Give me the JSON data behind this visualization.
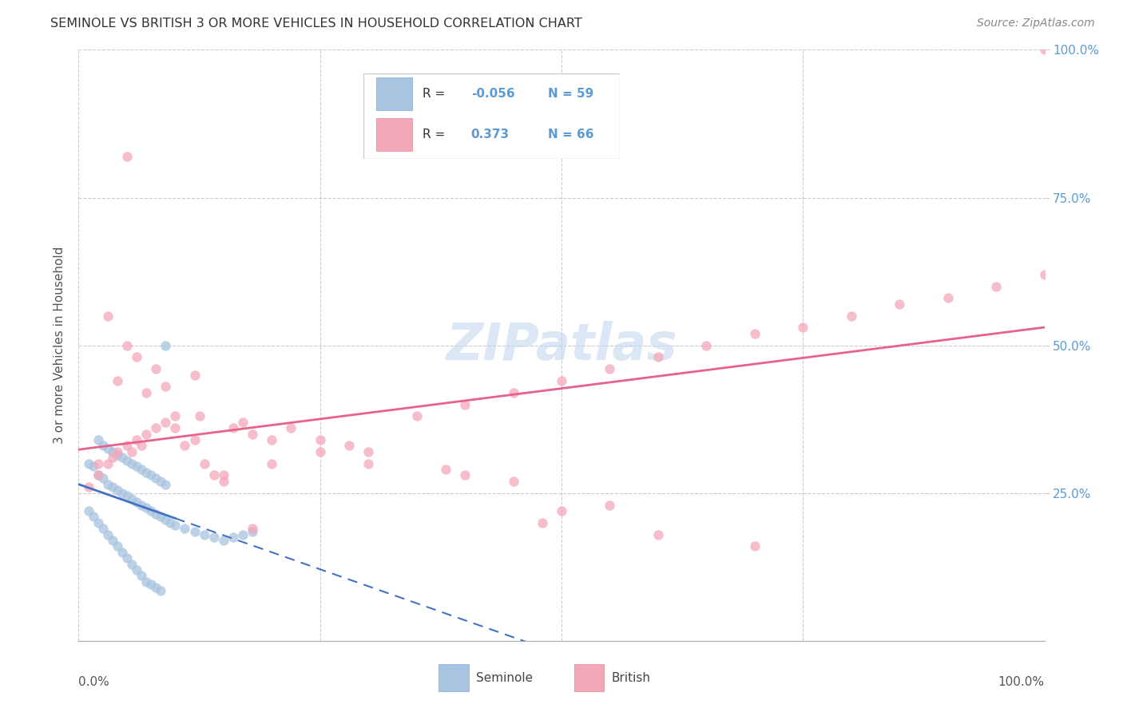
{
  "title": "SEMINOLE VS BRITISH 3 OR MORE VEHICLES IN HOUSEHOLD CORRELATION CHART",
  "source": "Source: ZipAtlas.com",
  "ylabel": "3 or more Vehicles in Household",
  "R_seminole": -0.056,
  "N_seminole": 59,
  "R_british": 0.373,
  "N_british": 66,
  "seminole_color": "#a8c4e0",
  "british_color": "#f4a7b9",
  "seminole_line_color": "#4472c4",
  "british_line_color": "#e8638c",
  "watermark_color": "#c5d8ef",
  "grid_color": "#cccccc",
  "seminole_x": [
    1.0,
    1.5,
    2.0,
    2.5,
    3.0,
    3.5,
    4.0,
    4.5,
    5.0,
    5.5,
    6.0,
    6.5,
    7.0,
    7.5,
    8.0,
    8.5,
    9.0,
    9.5,
    10.0,
    11.0,
    12.0,
    13.0,
    14.0,
    15.0,
    16.0,
    17.0,
    18.0,
    2.0,
    2.5,
    3.0,
    3.5,
    4.0,
    4.5,
    5.0,
    5.5,
    6.0,
    6.5,
    7.0,
    7.5,
    8.0,
    8.5,
    9.0,
    1.0,
    1.5,
    2.0,
    2.5,
    3.0,
    3.5,
    4.0,
    4.5,
    5.0,
    5.5,
    6.0,
    6.5,
    7.0,
    7.5,
    8.0,
    8.5,
    9.0
  ],
  "seminole_y": [
    30.0,
    29.5,
    28.0,
    27.5,
    26.5,
    26.0,
    25.5,
    25.0,
    24.5,
    24.0,
    23.5,
    23.0,
    22.5,
    22.0,
    21.5,
    21.0,
    20.5,
    20.0,
    19.5,
    19.0,
    18.5,
    18.0,
    17.5,
    17.0,
    17.5,
    18.0,
    18.5,
    34.0,
    33.0,
    32.5,
    32.0,
    31.5,
    31.0,
    30.5,
    30.0,
    29.5,
    29.0,
    28.5,
    28.0,
    27.5,
    27.0,
    26.5,
    22.0,
    21.0,
    20.0,
    19.0,
    18.0,
    17.0,
    16.0,
    15.0,
    14.0,
    13.0,
    12.0,
    11.0,
    10.0,
    9.5,
    9.0,
    8.5,
    50.0
  ],
  "british_x": [
    1.0,
    2.0,
    3.0,
    4.0,
    5.0,
    6.0,
    7.0,
    8.0,
    9.0,
    10.0,
    11.0,
    12.0,
    13.0,
    14.0,
    15.0,
    16.0,
    17.0,
    18.0,
    20.0,
    22.0,
    25.0,
    28.0,
    30.0,
    35.0,
    40.0,
    45.0,
    50.0,
    55.0,
    60.0,
    65.0,
    70.0,
    75.0,
    80.0,
    85.0,
    90.0,
    95.0,
    100.0,
    5.0,
    8.0,
    12.0,
    3.0,
    6.0,
    4.0,
    7.0,
    9.0,
    2.0,
    3.5,
    5.5,
    6.5,
    10.0,
    12.5,
    15.0,
    20.0,
    25.0,
    30.0,
    40.0,
    50.0,
    60.0,
    100.0,
    48.0,
    70.0,
    5.0,
    18.0,
    38.0,
    45.0,
    55.0
  ],
  "british_y": [
    26.0,
    28.0,
    30.0,
    32.0,
    33.0,
    34.0,
    35.0,
    36.0,
    37.0,
    38.0,
    33.0,
    34.0,
    30.0,
    28.0,
    27.0,
    36.0,
    37.0,
    35.0,
    34.0,
    36.0,
    34.0,
    33.0,
    32.0,
    38.0,
    40.0,
    42.0,
    44.0,
    46.0,
    48.0,
    50.0,
    52.0,
    53.0,
    55.0,
    57.0,
    58.0,
    60.0,
    62.0,
    50.0,
    46.0,
    45.0,
    55.0,
    48.0,
    44.0,
    42.0,
    43.0,
    30.0,
    31.0,
    32.0,
    33.0,
    36.0,
    38.0,
    28.0,
    30.0,
    32.0,
    30.0,
    28.0,
    22.0,
    18.0,
    100.0,
    20.0,
    16.0,
    82.0,
    19.0,
    29.0,
    27.0,
    23.0
  ]
}
